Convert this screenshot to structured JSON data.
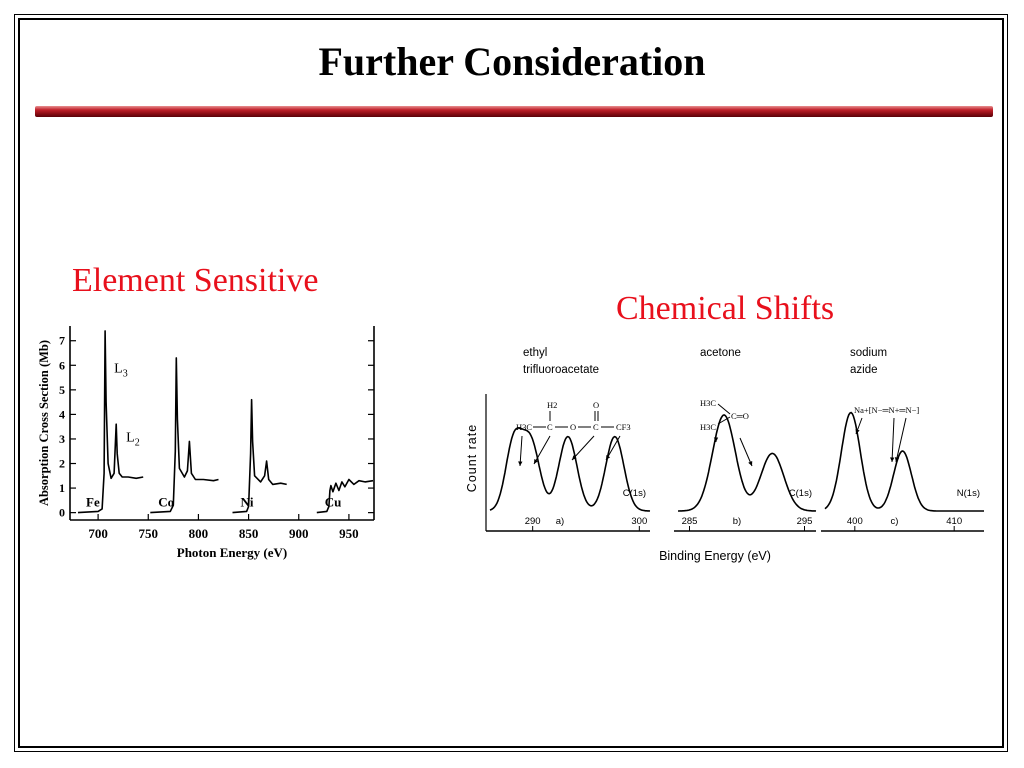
{
  "slide": {
    "title": "Further Consideration",
    "left_heading": "Element Sensitive",
    "right_heading": "Chemical Shifts"
  },
  "colors": {
    "rule": "#a0101a",
    "heading": "#e8101c",
    "ink": "#000000"
  },
  "chart_data": [
    {
      "type": "line",
      "xlabel": "Photon Energy (eV)",
      "ylabel": "Absorption Cross Section (Mb)",
      "xlim": [
        672,
        975
      ],
      "ylim": [
        -0.3,
        7.6
      ],
      "xticks": [
        700,
        750,
        800,
        850,
        900,
        950
      ],
      "yticks": [
        0,
        1,
        2,
        3,
        4,
        5,
        6,
        7
      ],
      "series": [
        {
          "name": "Fe",
          "x": [
            680,
            700,
            704,
            706,
            707,
            708,
            710,
            713,
            716,
            718,
            719,
            721,
            724,
            730,
            738,
            745
          ],
          "y": [
            0.0,
            0.05,
            0.15,
            1.6,
            7.4,
            4.5,
            2.0,
            1.4,
            1.6,
            3.6,
            2.4,
            1.6,
            1.45,
            1.45,
            1.4,
            1.45
          ]
        },
        {
          "name": "Co",
          "x": [
            752,
            772,
            775,
            777,
            778,
            779,
            781,
            786,
            789,
            791,
            793,
            797,
            805,
            815,
            820
          ],
          "y": [
            0.0,
            0.05,
            0.3,
            2.5,
            6.3,
            3.8,
            1.8,
            1.45,
            1.7,
            2.9,
            1.6,
            1.35,
            1.35,
            1.3,
            1.35
          ]
        },
        {
          "name": "Ni",
          "x": [
            834,
            848,
            850,
            852,
            853,
            854,
            856,
            862,
            866,
            868,
            870,
            874,
            882,
            888
          ],
          "y": [
            0.0,
            0.05,
            0.25,
            2.4,
            4.6,
            2.9,
            1.5,
            1.25,
            1.5,
            2.1,
            1.35,
            1.15,
            1.2,
            1.15
          ]
        },
        {
          "name": "Cu",
          "x": [
            918,
            928,
            930,
            931,
            932,
            934,
            937,
            940,
            943,
            946,
            950,
            955,
            960,
            966,
            974
          ],
          "y": [
            0.0,
            0.05,
            0.25,
            0.9,
            1.1,
            0.85,
            1.2,
            0.9,
            1.25,
            1.05,
            1.35,
            1.15,
            1.3,
            1.25,
            1.3
          ]
        }
      ],
      "annotations": [
        {
          "text": "L3",
          "x": 716,
          "y": 5.7
        },
        {
          "text": "L2",
          "x": 728,
          "y": 2.9
        }
      ]
    },
    {
      "type": "line",
      "xlabel": "Binding Energy (eV)",
      "ylabel": "Count rate",
      "panels": [
        {
          "label": "a)",
          "compound": [
            "ethyl",
            "trifluoroacetate"
          ],
          "orbital": "C(1s)",
          "xlim": [
            286,
            301
          ],
          "xticks": [
            290,
            300
          ],
          "peaks": [
            {
              "center": 288.2,
              "height": 0.55,
              "width": 0.75
            },
            {
              "center": 289.8,
              "height": 0.58,
              "width": 0.85
            },
            {
              "center": 293.3,
              "height": 0.62,
              "width": 0.85
            },
            {
              "center": 297.7,
              "height": 0.62,
              "width": 0.85
            }
          ],
          "structure": {
            "h2": "H2",
            "o_top": "O",
            "ch3": "H3C",
            "c": "C",
            "o": "O",
            "cf3": "CF3"
          }
        },
        {
          "label": "b)",
          "compound": [
            "acetone"
          ],
          "orbital": "C(1s)",
          "xlim": [
            284,
            296
          ],
          "xticks": [
            285,
            295
          ],
          "peaks": [
            {
              "center": 288.0,
              "height": 0.8,
              "width": 1.0
            },
            {
              "center": 292.2,
              "height": 0.48,
              "width": 1.0
            }
          ],
          "structure": {
            "top": "H3C",
            "bottom": "H3C",
            "carbonyl": "C═O"
          }
        },
        {
          "label": "c)",
          "compound": [
            "sodium",
            "azide"
          ],
          "orbital": "N(1s)",
          "xlim": [
            397,
            413
          ],
          "xticks": [
            400,
            410
          ],
          "peaks": [
            {
              "center": 399.6,
              "height": 0.82,
              "width": 0.95
            },
            {
              "center": 404.8,
              "height": 0.5,
              "width": 0.9
            }
          ],
          "structure": {
            "formula": "Na+[N−═N+═N−]"
          }
        }
      ]
    }
  ]
}
